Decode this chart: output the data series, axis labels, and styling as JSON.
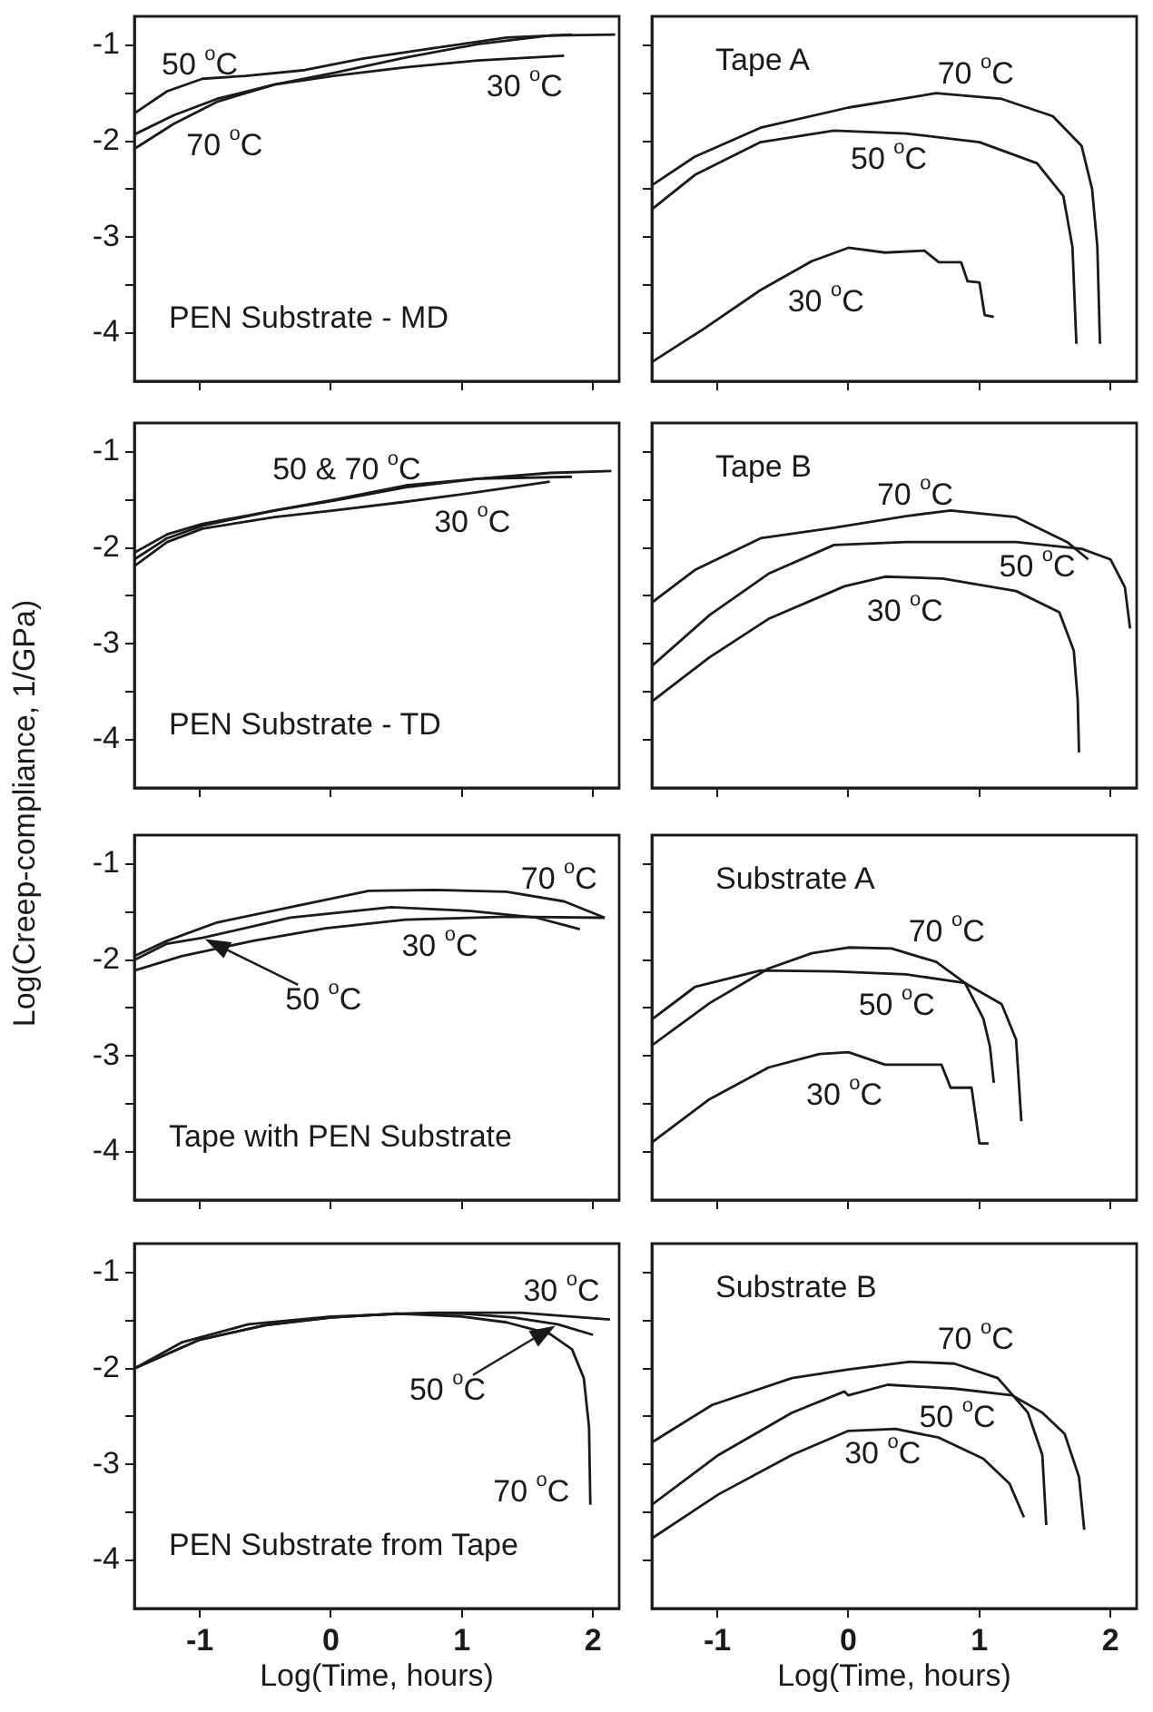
{
  "chart_data": [
    {
      "type": "line",
      "title": "PEN Substrate - MD",
      "xlim": [
        -1.5,
        2.2
      ],
      "ylim": [
        -4.5,
        -0.7
      ],
      "xticks": [
        -1,
        0,
        1,
        2
      ],
      "yticks": [
        -1,
        {
          "value": -1.5,
          "label": null
        },
        -2,
        {
          "value": -2.5,
          "label": null
        },
        -3,
        {
          "value": -3.5,
          "label": null
        },
        -4
      ],
      "tick_labels": "y",
      "series": [
        {
          "color": "#1a1a1a",
          "x": [
            -1.5,
            -1.25,
            -0.98,
            -0.65,
            -0.2,
            0.24,
            0.79,
            1.34,
            1.84
          ],
          "values": [
            -1.71,
            -1.48,
            -1.35,
            -1.32,
            -1.26,
            -1.14,
            -1.03,
            -0.92,
            -0.89
          ]
        },
        {
          "color": "#1a1a1a",
          "x": [
            -1.5,
            -1.2,
            -0.87,
            -0.43,
            0.02,
            0.57,
            1.12,
            1.67,
            2.17
          ],
          "values": [
            -1.93,
            -1.73,
            -1.56,
            -1.41,
            -1.29,
            -1.13,
            -0.99,
            -0.9,
            -0.89
          ]
        },
        {
          "color": "#1a1a1a",
          "x": [
            -1.5,
            -1.2,
            -0.87,
            -0.43,
            0.02,
            0.57,
            1.12,
            1.78
          ],
          "values": [
            -2.08,
            -1.82,
            -1.59,
            -1.41,
            -1.32,
            -1.23,
            -1.16,
            -1.11
          ]
        }
      ],
      "annotations": [
        "50 $^{o}$C",
        "30 $^{o}$C",
        "70 $^{o}$C"
      ]
    },
    {
      "type": "line",
      "title": "Tape A",
      "xlim": [
        -1.5,
        2.2
      ],
      "ylim": [
        -4.5,
        -0.7
      ],
      "xticks": [
        -1,
        0,
        1,
        2
      ],
      "yticks": [
        -1,
        {
          "value": -1.5,
          "label": null
        },
        -2,
        {
          "value": -2.5,
          "label": null
        },
        -3,
        {
          "value": -3.5,
          "label": null
        },
        -4
      ],
      "tick_labels": false,
      "series": [
        {
          "color": "#1a1a1a",
          "x": [
            -1.5,
            -1.17,
            -0.67,
            0,
            0.67,
            1.17,
            1.56,
            1.78,
            1.86,
            1.9,
            1.92
          ],
          "values": [
            -2.46,
            -2.16,
            -1.86,
            -1.65,
            -1.5,
            -1.56,
            -1.74,
            -2.05,
            -2.5,
            -3.1,
            -4.11
          ]
        },
        {
          "color": "#1a1a1a",
          "x": [
            -1.5,
            -1.17,
            -0.67,
            -0.11,
            0.44,
            1.0,
            1.44,
            1.64,
            1.71,
            1.74
          ],
          "values": [
            -2.71,
            -2.35,
            -2.01,
            -1.89,
            -1.92,
            -2.01,
            -2.23,
            -2.57,
            -3.1,
            -4.11
          ]
        },
        {
          "color": "#1a1a1a",
          "x": [
            -1.5,
            -1.11,
            -0.67,
            -0.28,
            0,
            0.28,
            0.58,
            0.69,
            0.86,
            0.91,
            1.0,
            1.04,
            1.11
          ],
          "values": [
            -4.3,
            -3.96,
            -3.55,
            -3.25,
            -3.11,
            -3.16,
            -3.14,
            -3.26,
            -3.26,
            -3.46,
            -3.47,
            -3.81,
            -3.83
          ]
        }
      ],
      "annotations": [
        "70 $^{o}$C",
        "50 $^{o}$C",
        "30 $^{o}$C"
      ]
    },
    {
      "type": "line",
      "title": "PEN Substrate - TD",
      "ylabel": "Log(Creep-compliance, 1/GPa)",
      "xlim": [
        -1.5,
        2.2
      ],
      "ylim": [
        -4.5,
        -0.7
      ],
      "xticks": [
        -1,
        0,
        1,
        2
      ],
      "yticks": [
        -1,
        {
          "value": -1.5,
          "label": null
        },
        -2,
        {
          "value": -2.5,
          "label": null
        },
        -3,
        {
          "value": -3.5,
          "label": null
        },
        -4
      ],
      "tick_labels": "y",
      "series": [
        {
          "color": "#1a1a1a",
          "x": [
            -1.5,
            -1.25,
            -0.98,
            -0.43,
            0.02,
            0.57,
            1.12,
            1.67,
            2.14
          ],
          "values": [
            -2.05,
            -1.86,
            -1.75,
            -1.61,
            -1.5,
            -1.35,
            -1.28,
            -1.22,
            -1.2
          ]
        },
        {
          "color": "#1a1a1a",
          "x": [
            -1.5,
            -1.25,
            -0.98,
            -0.43,
            0.02,
            0.57,
            1.12,
            1.84
          ],
          "values": [
            -2.12,
            -1.9,
            -1.77,
            -1.61,
            -1.51,
            -1.37,
            -1.28,
            -1.26
          ]
        },
        {
          "color": "#1a1a1a",
          "x": [
            -1.5,
            -1.25,
            -0.98,
            -0.43,
            0.02,
            0.57,
            1.12,
            1.67
          ],
          "values": [
            -2.19,
            -1.94,
            -1.8,
            -1.68,
            -1.61,
            -1.52,
            -1.42,
            -1.31
          ]
        }
      ],
      "annotations": [
        "50 & 70 $^{o}$C",
        "30 $^{o}$C"
      ]
    },
    {
      "type": "line",
      "title": "Tape B",
      "xlim": [
        -1.5,
        2.2
      ],
      "ylim": [
        -4.5,
        -0.7
      ],
      "xticks": [
        -1,
        0,
        1,
        2
      ],
      "yticks": [
        -1,
        {
          "value": -1.5,
          "label": null
        },
        -2,
        {
          "value": -2.5,
          "label": null
        },
        -3,
        {
          "value": -3.5,
          "label": null
        },
        -4
      ],
      "tick_labels": false,
      "series": [
        {
          "color": "#1a1a1a",
          "x": [
            -1.5,
            -1.17,
            -0.67,
            -0.11,
            0.44,
            0.78,
            1.28,
            1.67,
            1.83
          ],
          "values": [
            -2.57,
            -2.23,
            -1.9,
            -1.79,
            -1.67,
            -1.61,
            -1.68,
            -1.94,
            -2.12
          ]
        },
        {
          "color": "#1a1a1a",
          "x": [
            -1.5,
            -1.06,
            -0.61,
            -0.11,
            0.44,
            1.28,
            1.78,
            2.0,
            2.11,
            2.15
          ],
          "values": [
            -3.23,
            -2.7,
            -2.27,
            -1.97,
            -1.94,
            -1.94,
            -2.01,
            -2.12,
            -2.41,
            -2.84
          ]
        },
        {
          "color": "#1a1a1a",
          "x": [
            -1.5,
            -1.06,
            -0.61,
            -0.03,
            0.28,
            0.72,
            1.28,
            1.61,
            1.72,
            1.75,
            1.76
          ],
          "values": [
            -3.6,
            -3.14,
            -2.74,
            -2.4,
            -2.3,
            -2.32,
            -2.45,
            -2.67,
            -3.07,
            -3.58,
            -4.13
          ]
        }
      ],
      "annotations": [
        "70 $^{o}$C",
        "50 $^{o}$C",
        "30 $^{o}$C"
      ]
    },
    {
      "type": "line",
      "title": "Tape with PEN Substrate",
      "xlim": [
        -1.5,
        2.2
      ],
      "ylim": [
        -4.5,
        -0.7
      ],
      "xticks": [
        -1,
        0,
        1,
        2
      ],
      "yticks": [
        -1,
        {
          "value": -1.5,
          "label": null
        },
        -2,
        {
          "value": -2.5,
          "label": null
        },
        -3,
        {
          "value": -3.5,
          "label": null
        },
        -4
      ],
      "tick_labels": "y",
      "series": [
        {
          "color": "#1a1a1a",
          "x": [
            -1.5,
            -1.25,
            -0.87,
            -0.31,
            0.29,
            0.79,
            1.34,
            1.78,
            2.09
          ],
          "values": [
            -1.96,
            -1.8,
            -1.61,
            -1.45,
            -1.28,
            -1.27,
            -1.29,
            -1.39,
            -1.56
          ]
        },
        {
          "color": "#1a1a1a",
          "x": [
            -1.5,
            -1.25,
            -0.98,
            -0.31,
            0.46,
            1.07,
            1.57,
            1.9
          ],
          "values": [
            -2.0,
            -1.83,
            -1.77,
            -1.56,
            -1.45,
            -1.49,
            -1.56,
            -1.68
          ]
        },
        {
          "color": "#1a1a1a",
          "x": [
            -1.5,
            -1.14,
            -0.59,
            -0.04,
            0.57,
            1.34,
            2.09
          ],
          "values": [
            -2.11,
            -1.96,
            -1.8,
            -1.67,
            -1.58,
            -1.55,
            -1.56
          ]
        }
      ],
      "annotations": [
        "70 $^{o}$C",
        "30 $^{o}$C",
        {
          "text": "50 $^{o}$C",
          "x": -0.98,
          "y": -1.77
        }
      ]
    },
    {
      "type": "line",
      "title": "Substrate A",
      "xlim": [
        -1.5,
        2.2
      ],
      "ylim": [
        -4.5,
        -0.7
      ],
      "xticks": [
        -1,
        0,
        1,
        2
      ],
      "yticks": [
        -1,
        {
          "value": -1.5,
          "label": null
        },
        -2,
        {
          "value": -2.5,
          "label": null
        },
        -3,
        {
          "value": -3.5,
          "label": null
        },
        -4
      ],
      "tick_labels": false,
      "series": [
        {
          "color": "#1a1a1a",
          "x": [
            -1.5,
            -1.06,
            -0.61,
            -0.28,
            0,
            0.33,
            0.67,
            0.89,
            1.03,
            1.08,
            1.11
          ],
          "values": [
            -2.89,
            -2.45,
            -2.09,
            -1.93,
            -1.87,
            -1.88,
            -2.02,
            -2.24,
            -2.61,
            -2.9,
            -3.28
          ]
        },
        {
          "color": "#1a1a1a",
          "x": [
            -1.5,
            -1.17,
            -0.67,
            -0.11,
            0.44,
            0.89,
            1.17,
            1.28,
            1.32
          ],
          "values": [
            -2.62,
            -2.28,
            -2.11,
            -2.12,
            -2.15,
            -2.24,
            -2.46,
            -2.83,
            -3.68
          ]
        },
        {
          "color": "#1a1a1a",
          "x": [
            -1.5,
            -1.06,
            -0.61,
            -0.22,
            0,
            0.28,
            0.71,
            0.78,
            0.94,
            1.0,
            1.07
          ],
          "values": [
            -3.9,
            -3.45,
            -3.12,
            -2.98,
            -2.96,
            -3.09,
            -3.09,
            -3.33,
            -3.33,
            -3.91,
            -3.91
          ]
        }
      ],
      "annotations": [
        "70 $^{o}$C",
        "50 $^{o}$C",
        "30 $^{o}$C"
      ]
    },
    {
      "type": "line",
      "title": "PEN Substrate from Tape",
      "xlabel": "Log(Time, hours)",
      "xlim": [
        -1.5,
        2.2
      ],
      "ylim": [
        -4.5,
        -0.7
      ],
      "xticks": [
        -1,
        0,
        1,
        2
      ],
      "yticks": [
        -1,
        {
          "value": -1.5,
          "label": null
        },
        -2,
        {
          "value": -2.5,
          "label": null
        },
        -3,
        {
          "value": -3.5,
          "label": null
        },
        -4
      ],
      "series": [
        {
          "color": "#1a1a1a",
          "x": [
            -1.5,
            -1.14,
            -0.63,
            0,
            0.77,
            1.45,
            2.13
          ],
          "values": [
            -2.0,
            -1.73,
            -1.54,
            -1.46,
            -1.42,
            -1.42,
            -1.49
          ]
        },
        {
          "color": "#1a1a1a",
          "x": [
            -1.5,
            -1.0,
            -0.5,
            0,
            0.5,
            1.0,
            1.39,
            1.73,
            2.0
          ],
          "values": [
            -2.0,
            -1.7,
            -1.55,
            -1.47,
            -1.43,
            -1.43,
            -1.47,
            -1.54,
            -1.65
          ]
        },
        {
          "color": "#1a1a1a",
          "x": [
            -1.5,
            -1.0,
            -0.5,
            0,
            0.5,
            1.0,
            1.34,
            1.67,
            1.84,
            1.93,
            1.97,
            1.98
          ],
          "values": [
            -2.0,
            -1.7,
            -1.55,
            -1.47,
            -1.43,
            -1.46,
            -1.52,
            -1.64,
            -1.8,
            -2.1,
            -2.61,
            -3.42
          ]
        }
      ],
      "annotations": [
        "30 $^{o}$C",
        {
          "text": "50 $^{o}$C",
          "x": 1.73,
          "y": -1.54
        },
        "70 $^{o}$C"
      ]
    },
    {
      "type": "line",
      "title": "Substrate B",
      "xlabel": "Log(Time, hours)",
      "xlim": [
        -1.5,
        2.2
      ],
      "ylim": [
        -4.5,
        -0.7
      ],
      "xticks": [
        -1,
        0,
        1,
        2
      ],
      "yticks": [
        -1,
        {
          "value": -1.5,
          "label": null
        },
        -2,
        {
          "value": -2.5,
          "label": null
        },
        -3,
        {
          "value": -3.5,
          "label": null
        },
        -4
      ],
      "tick_labels": "x",
      "series": [
        {
          "color": "#1a1a1a",
          "x": [
            -1.5,
            -1.04,
            -0.43,
            0,
            0.47,
            0.81,
            1.14,
            1.37,
            1.48,
            1.51
          ],
          "values": [
            -2.77,
            -2.38,
            -2.1,
            -2.01,
            -1.93,
            -1.95,
            -2.1,
            -2.46,
            -2.9,
            -3.63
          ]
        },
        {
          "color": "#1a1a1a",
          "x": [
            -1.5,
            -0.99,
            -0.43,
            -0.03,
            0,
            0.3,
            0.81,
            1.25,
            1.48,
            1.65,
            1.76,
            1.8
          ],
          "values": [
            -3.42,
            -2.9,
            -2.46,
            -2.24,
            -2.28,
            -2.17,
            -2.21,
            -2.28,
            -2.46,
            -2.68,
            -3.13,
            -3.68
          ]
        },
        {
          "color": "#1a1a1a",
          "x": [
            -1.5,
            -0.99,
            -0.43,
            0,
            0.36,
            0.69,
            1.03,
            1.23,
            1.34
          ],
          "values": [
            -3.77,
            -3.31,
            -2.9,
            -2.65,
            -2.63,
            -2.72,
            -2.94,
            -3.2,
            -3.55
          ]
        }
      ],
      "annotations": [
        "70 $^{o}$C",
        "50 $^{o}$C",
        "30 $^{o}$C"
      ]
    }
  ]
}
